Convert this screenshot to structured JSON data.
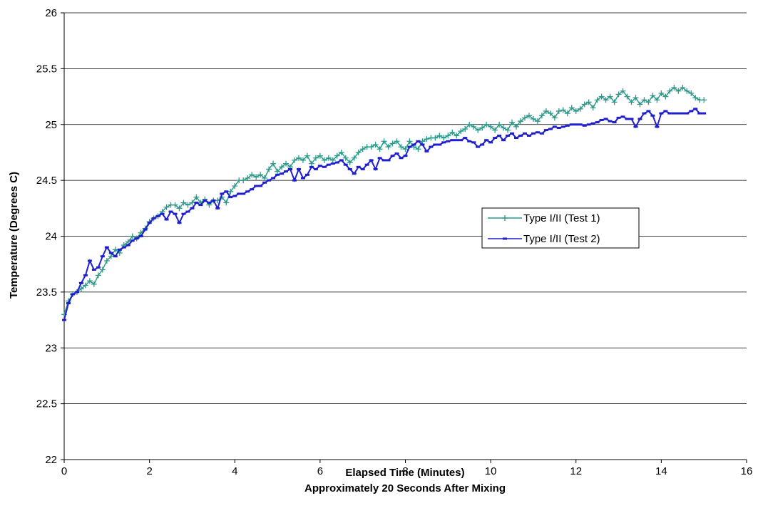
{
  "chart_data": {
    "type": "line",
    "title": "",
    "xlabel": "Elapsed Time (Minutes)",
    "xlabel_sub": "Approximately 20 Seconds After Mixing",
    "ylabel": "Temperature (Degrees C)",
    "xlim": [
      0,
      16
    ],
    "ylim": [
      22,
      26
    ],
    "x_ticks": [
      "0",
      "2",
      "4",
      "6",
      "8",
      "10",
      "12",
      "14",
      "16"
    ],
    "y_ticks": [
      "22",
      "22.5",
      "23",
      "23.5",
      "24",
      "24.5",
      "25",
      "25.5",
      "26"
    ],
    "grid": "horizontal",
    "legend_position": "right",
    "series": [
      {
        "name": "Type I/II (Test 1)",
        "color": "#2a9a8a",
        "marker": "plus",
        "x": [
          0,
          0.1,
          0.2,
          0.3,
          0.4,
          0.5,
          0.6,
          0.7,
          0.8,
          0.9,
          1.0,
          1.1,
          1.2,
          1.3,
          1.4,
          1.5,
          1.6,
          1.7,
          1.8,
          1.9,
          2.0,
          2.1,
          2.2,
          2.3,
          2.4,
          2.5,
          2.6,
          2.7,
          2.8,
          2.9,
          3.0,
          3.1,
          3.2,
          3.3,
          3.4,
          3.5,
          3.6,
          3.7,
          3.8,
          3.9,
          4.0,
          4.1,
          4.2,
          4.3,
          4.4,
          4.5,
          4.6,
          4.7,
          4.8,
          4.9,
          5.0,
          5.1,
          5.2,
          5.3,
          5.4,
          5.5,
          5.6,
          5.7,
          5.8,
          5.9,
          6.0,
          6.1,
          6.2,
          6.3,
          6.4,
          6.5,
          6.6,
          6.7,
          6.8,
          6.9,
          7.0,
          7.1,
          7.2,
          7.3,
          7.4,
          7.5,
          7.6,
          7.7,
          7.8,
          7.9,
          8.0,
          8.1,
          8.2,
          8.3,
          8.4,
          8.5,
          8.6,
          8.7,
          8.8,
          8.9,
          9.0,
          9.1,
          9.2,
          9.3,
          9.4,
          9.5,
          9.6,
          9.7,
          9.8,
          9.9,
          10.0,
          10.1,
          10.2,
          10.3,
          10.4,
          10.5,
          10.6,
          10.7,
          10.8,
          10.9,
          11.0,
          11.1,
          11.2,
          11.3,
          11.4,
          11.5,
          11.6,
          11.7,
          11.8,
          11.9,
          12.0,
          12.1,
          12.2,
          12.3,
          12.4,
          12.5,
          12.6,
          12.7,
          12.8,
          12.9,
          13.0,
          13.1,
          13.2,
          13.3,
          13.4,
          13.5,
          13.6,
          13.7,
          13.8,
          13.9,
          14.0,
          14.1,
          14.2,
          14.3,
          14.4,
          14.5,
          14.6,
          14.7,
          14.8,
          14.9,
          15.0
        ],
        "values": [
          23.3,
          23.42,
          23.48,
          23.5,
          23.53,
          23.56,
          23.6,
          23.57,
          23.65,
          23.7,
          23.78,
          23.82,
          23.88,
          23.85,
          23.92,
          23.95,
          24.0,
          23.98,
          24.03,
          24.07,
          24.13,
          24.16,
          24.18,
          24.22,
          24.26,
          24.28,
          24.28,
          24.25,
          24.3,
          24.28,
          24.3,
          24.35,
          24.3,
          24.33,
          24.28,
          24.32,
          24.32,
          24.35,
          24.3,
          24.4,
          24.45,
          24.5,
          24.5,
          24.52,
          24.55,
          24.53,
          24.55,
          24.52,
          24.6,
          24.65,
          24.58,
          24.62,
          24.65,
          24.62,
          24.68,
          24.7,
          24.68,
          24.72,
          24.65,
          24.7,
          24.72,
          24.68,
          24.7,
          24.68,
          24.72,
          24.75,
          24.7,
          24.66,
          24.7,
          24.75,
          24.78,
          24.8,
          24.8,
          24.82,
          24.78,
          24.85,
          24.8,
          24.83,
          24.85,
          24.8,
          24.78,
          24.85,
          24.8,
          24.78,
          24.85,
          24.87,
          24.88,
          24.88,
          24.9,
          24.88,
          24.9,
          24.93,
          24.9,
          24.94,
          24.96,
          25.0,
          24.98,
          24.95,
          24.97,
          25.0,
          24.98,
          24.95,
          25.0,
          24.97,
          24.95,
          25.02,
          24.98,
          25.03,
          25.06,
          25.08,
          25.05,
          25.03,
          25.08,
          25.12,
          25.1,
          25.06,
          25.12,
          25.13,
          25.1,
          25.15,
          25.12,
          25.14,
          25.18,
          25.2,
          25.15,
          25.22,
          25.25,
          25.22,
          25.25,
          25.2,
          25.27,
          25.3,
          25.25,
          25.2,
          25.24,
          25.18,
          25.22,
          25.2,
          25.26,
          25.22,
          25.28,
          25.25,
          25.3,
          25.33,
          25.3,
          25.33,
          25.3,
          25.28,
          25.24,
          25.22,
          25.22
        ]
      },
      {
        "name": "Type I/II (Test 2)",
        "color": "#1f1fd0",
        "marker": "dash",
        "x": [
          0,
          0.1,
          0.2,
          0.3,
          0.4,
          0.5,
          0.6,
          0.7,
          0.8,
          0.9,
          1.0,
          1.1,
          1.2,
          1.3,
          1.4,
          1.5,
          1.6,
          1.7,
          1.8,
          1.9,
          2.0,
          2.1,
          2.2,
          2.3,
          2.4,
          2.5,
          2.6,
          2.7,
          2.8,
          2.9,
          3.0,
          3.1,
          3.2,
          3.3,
          3.4,
          3.5,
          3.6,
          3.7,
          3.8,
          3.9,
          4.0,
          4.1,
          4.2,
          4.3,
          4.4,
          4.5,
          4.6,
          4.7,
          4.8,
          4.9,
          5.0,
          5.1,
          5.2,
          5.3,
          5.4,
          5.5,
          5.6,
          5.7,
          5.8,
          5.9,
          6.0,
          6.1,
          6.2,
          6.3,
          6.4,
          6.5,
          6.6,
          6.7,
          6.8,
          6.9,
          7.0,
          7.1,
          7.2,
          7.3,
          7.4,
          7.5,
          7.6,
          7.7,
          7.8,
          7.9,
          8.0,
          8.1,
          8.2,
          8.3,
          8.4,
          8.5,
          8.6,
          8.7,
          8.8,
          8.9,
          9.0,
          9.1,
          9.2,
          9.3,
          9.4,
          9.5,
          9.6,
          9.7,
          9.8,
          9.9,
          10.0,
          10.1,
          10.2,
          10.3,
          10.4,
          10.5,
          10.6,
          10.7,
          10.8,
          10.9,
          11.0,
          11.1,
          11.2,
          11.3,
          11.4,
          11.5,
          11.6,
          11.7,
          11.8,
          11.9,
          12.0,
          12.1,
          12.2,
          12.3,
          12.4,
          12.5,
          12.6,
          12.7,
          12.8,
          12.9,
          13.0,
          13.1,
          13.2,
          13.3,
          13.4,
          13.5,
          13.6,
          13.7,
          13.8,
          13.9,
          14.0,
          14.1,
          14.2,
          14.3,
          14.4,
          14.5,
          14.6,
          14.7,
          14.8,
          14.9,
          15.0
        ],
        "values": [
          23.25,
          23.4,
          23.48,
          23.5,
          23.58,
          23.65,
          23.78,
          23.7,
          23.72,
          23.82,
          23.9,
          23.85,
          23.82,
          23.88,
          23.9,
          23.92,
          23.96,
          23.98,
          24.0,
          24.06,
          24.12,
          24.16,
          24.18,
          24.2,
          24.15,
          24.22,
          24.2,
          24.12,
          24.2,
          24.22,
          24.25,
          24.3,
          24.28,
          24.32,
          24.3,
          24.32,
          24.25,
          24.38,
          24.4,
          24.35,
          24.36,
          24.38,
          24.38,
          24.4,
          24.42,
          24.45,
          24.45,
          24.48,
          24.5,
          24.52,
          24.55,
          24.56,
          24.58,
          24.6,
          24.5,
          24.6,
          24.52,
          24.55,
          24.62,
          24.6,
          24.63,
          24.62,
          24.64,
          24.65,
          24.66,
          24.68,
          24.64,
          24.6,
          24.56,
          24.62,
          24.6,
          24.64,
          24.68,
          24.6,
          24.7,
          24.68,
          24.68,
          24.72,
          24.74,
          24.7,
          24.72,
          24.8,
          24.82,
          24.85,
          24.82,
          24.76,
          24.8,
          24.82,
          24.82,
          24.84,
          24.85,
          24.86,
          24.86,
          24.86,
          24.88,
          24.85,
          24.84,
          24.8,
          24.82,
          24.86,
          24.84,
          24.88,
          24.9,
          24.86,
          24.9,
          24.92,
          24.88,
          24.9,
          24.92,
          24.9,
          24.92,
          24.93,
          24.92,
          24.95,
          24.96,
          24.98,
          24.97,
          24.98,
          24.99,
          25.0,
          25.0,
          25.0,
          24.99,
          25.0,
          25.01,
          25.02,
          25.04,
          25.05,
          25.03,
          25.02,
          25.06,
          25.07,
          25.05,
          25.05,
          24.98,
          25.05,
          25.1,
          25.12,
          25.08,
          24.98,
          25.1,
          25.12,
          25.1,
          25.1,
          25.1,
          25.1,
          25.1,
          25.12,
          25.14,
          25.1,
          25.1
        ]
      }
    ]
  }
}
